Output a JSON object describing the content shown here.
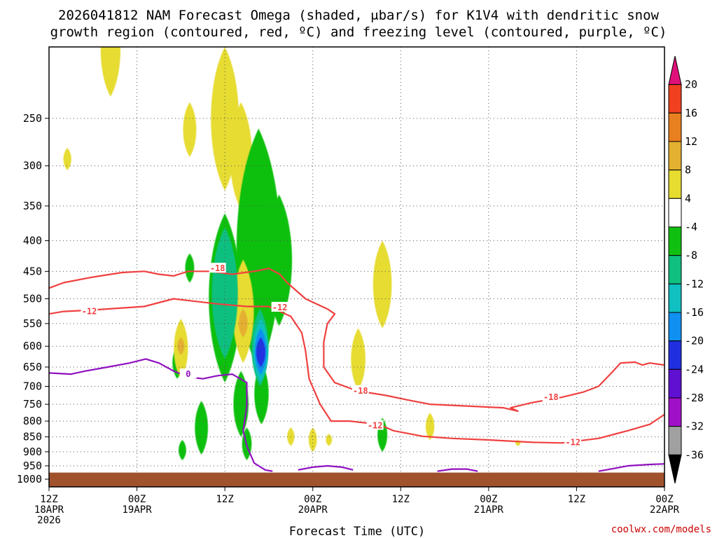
{
  "chart_data": {
    "type": "time-height cross section (filled contours + line contours)",
    "title_line1": "2026041812 NAM Forecast Omega (shaded, μbar/s) for K1V4 with dendritic snow",
    "title_line2": "growth region (contoured, red, ºC) and freezing level (contoured, purple, ºC)",
    "xlabel": "Forecast Time (UTC)",
    "credit": "coolwx.com/models",
    "yaxis": {
      "label": "",
      "ticks": [
        "250",
        "300",
        "350",
        "400",
        "450",
        "500",
        "550",
        "600",
        "650",
        "700",
        "750",
        "800",
        "850",
        "900",
        "950",
        "1000"
      ],
      "ticks_values": [
        250,
        300,
        350,
        400,
        450,
        500,
        550,
        600,
        650,
        700,
        750,
        800,
        850,
        900,
        950,
        1000
      ],
      "range_mb": [
        190,
        1030
      ]
    },
    "xaxis": {
      "range_hours": [
        0,
        84
      ],
      "ticks": [
        {
          "hour": 0,
          "lines": [
            "12Z",
            "18APR",
            "2026"
          ]
        },
        {
          "hour": 12,
          "lines": [
            "00Z",
            "19APR"
          ]
        },
        {
          "hour": 24,
          "lines": [
            "12Z"
          ]
        },
        {
          "hour": 36,
          "lines": [
            "00Z",
            "20APR"
          ]
        },
        {
          "hour": 48,
          "lines": [
            "12Z"
          ]
        },
        {
          "hour": 60,
          "lines": [
            "00Z",
            "21APR"
          ]
        },
        {
          "hour": 72,
          "lines": [
            "12Z"
          ]
        },
        {
          "hour": 84,
          "lines": [
            "00Z",
            "22APR"
          ]
        }
      ]
    },
    "colorbar": {
      "labels": [
        "20",
        "16",
        "12",
        "8",
        "4",
        "-4",
        "-8",
        "-12",
        "-16",
        "-20",
        "-24",
        "-28",
        "-32",
        "-36"
      ],
      "bins": [
        {
          "from": 20,
          "to": 24,
          "color": "#e0107a"
        },
        {
          "from": 16,
          "to": 20,
          "color": "#f04020"
        },
        {
          "from": 12,
          "to": 16,
          "color": "#e88020"
        },
        {
          "from": 8,
          "to": 12,
          "color": "#e4b030"
        },
        {
          "from": 4,
          "to": 8,
          "color": "#e6dc30"
        },
        {
          "from": -4,
          "to": 4,
          "color": "#ffffff"
        },
        {
          "from": -8,
          "to": -4,
          "color": "#10c010"
        },
        {
          "from": -12,
          "to": -8,
          "color": "#10c080"
        },
        {
          "from": -16,
          "to": -12,
          "color": "#10c0c0"
        },
        {
          "from": -20,
          "to": -16,
          "color": "#1090f0"
        },
        {
          "from": -24,
          "to": -20,
          "color": "#2030e0"
        },
        {
          "from": -28,
          "to": -24,
          "color": "#6010d0"
        },
        {
          "from": -32,
          "to": -28,
          "color": "#a010c8"
        },
        {
          "from": -36,
          "to": -32,
          "color": "#a0a0a0"
        },
        {
          "from": -40,
          "to": -36,
          "color": "#000000"
        }
      ]
    },
    "terrain_top_mb": 975,
    "omega_blobs": [
      {
        "value": 4,
        "hour": 8.4,
        "top": 160,
        "bottom": 230
      },
      {
        "value": 4,
        "hour": 2.5,
        "top": 280,
        "bottom": 305
      },
      {
        "value": 4,
        "hour": 19.2,
        "top": 235,
        "bottom": 290
      },
      {
        "value": 4,
        "hour": 24.0,
        "top": 190,
        "bottom": 330
      },
      {
        "value": 4,
        "hour": 26.2,
        "top": 235,
        "bottom": 355
      },
      {
        "value": -4,
        "hour": 28.6,
        "top": 260,
        "bottom": 660
      },
      {
        "value": -4,
        "hour": 31.4,
        "top": 335,
        "bottom": 555
      },
      {
        "value": -4,
        "hour": 24.0,
        "top": 360,
        "bottom": 690
      },
      {
        "value": -4,
        "hour": 17.5,
        "top": 600,
        "bottom": 680
      },
      {
        "value": -4,
        "hour": 20.8,
        "top": 740,
        "bottom": 910
      },
      {
        "value": -4,
        "hour": 18.2,
        "top": 860,
        "bottom": 930
      },
      {
        "value": -4,
        "hour": 26.2,
        "top": 660,
        "bottom": 850
      },
      {
        "value": -4,
        "hour": 29.0,
        "top": 640,
        "bottom": 810
      },
      {
        "value": -4,
        "hour": 27.0,
        "top": 820,
        "bottom": 930
      },
      {
        "value": -4,
        "hour": 19.2,
        "top": 420,
        "bottom": 470
      },
      {
        "value": -4,
        "hour": 45.5,
        "top": 790,
        "bottom": 900
      },
      {
        "value": -8,
        "hour": 28.8,
        "top": 520,
        "bottom": 700
      },
      {
        "value": -8,
        "hour": 24.0,
        "top": 380,
        "bottom": 630
      },
      {
        "value": -12,
        "hour": 28.9,
        "top": 540,
        "bottom": 690
      },
      {
        "value": -16,
        "hour": 28.9,
        "top": 560,
        "bottom": 670
      },
      {
        "value": -20,
        "hour": 28.9,
        "top": 580,
        "bottom": 650
      },
      {
        "value": 4,
        "hour": 26.5,
        "top": 430,
        "bottom": 640
      },
      {
        "value": 8,
        "hour": 26.5,
        "top": 520,
        "bottom": 580
      },
      {
        "value": 4,
        "hour": 18.0,
        "top": 540,
        "bottom": 680
      },
      {
        "value": 8,
        "hour": 18.0,
        "top": 580,
        "bottom": 620
      },
      {
        "value": 4,
        "hour": 45.5,
        "top": 400,
        "bottom": 560
      },
      {
        "value": 4,
        "hour": 42.2,
        "top": 560,
        "bottom": 710
      },
      {
        "value": 4,
        "hour": 33.0,
        "top": 820,
        "bottom": 880
      },
      {
        "value": 4,
        "hour": 36.0,
        "top": 820,
        "bottom": 900
      },
      {
        "value": 4,
        "hour": 52.0,
        "top": 775,
        "bottom": 860
      },
      {
        "value": 4,
        "hour": 64.0,
        "top": 860,
        "bottom": 880
      },
      {
        "value": 4,
        "hour": 38.2,
        "top": 840,
        "bottom": 880
      }
    ],
    "contours_dgz_red": [
      {
        "level": "-18",
        "points": [
          [
            0,
            480
          ],
          [
            2,
            470
          ],
          [
            6,
            460
          ],
          [
            10,
            452
          ],
          [
            13,
            450
          ],
          [
            15,
            455
          ],
          [
            17,
            458
          ],
          [
            19,
            450
          ],
          [
            22,
            450
          ],
          [
            25,
            455
          ],
          [
            28,
            450
          ],
          [
            30,
            445
          ],
          [
            31.5,
            455
          ],
          [
            32.5,
            470
          ],
          [
            35,
            500
          ],
          [
            38,
            520
          ],
          [
            39,
            530
          ],
          [
            38,
            550
          ],
          [
            37.5,
            590
          ],
          [
            37.5,
            650
          ],
          [
            39,
            690
          ],
          [
            42,
            712
          ],
          [
            46,
            725
          ],
          [
            49,
            738
          ],
          [
            52,
            750
          ],
          [
            57,
            755
          ],
          [
            62,
            760
          ],
          [
            64,
            770
          ],
          [
            63,
            760
          ],
          [
            66,
            745
          ],
          [
            70,
            730
          ],
          [
            73,
            715
          ],
          [
            75,
            700
          ],
          [
            77,
            660
          ],
          [
            78,
            640
          ],
          [
            80,
            638
          ],
          [
            81,
            645
          ],
          [
            82,
            640
          ],
          [
            84,
            645
          ]
        ],
        "labels": [
          [
            23,
            445
          ],
          [
            42.5,
            712
          ],
          [
            68.5,
            730
          ]
        ]
      },
      {
        "level": "-12",
        "points": [
          [
            0,
            530
          ],
          [
            2,
            525
          ],
          [
            6,
            522
          ],
          [
            10,
            518
          ],
          [
            13,
            515
          ],
          [
            17,
            500
          ],
          [
            20,
            505
          ],
          [
            23,
            510
          ],
          [
            27,
            515
          ],
          [
            30,
            515
          ],
          [
            33,
            535
          ],
          [
            34.5,
            570
          ],
          [
            35,
            610
          ],
          [
            35.5,
            680
          ],
          [
            37,
            750
          ],
          [
            38.5,
            800
          ],
          [
            41,
            800
          ],
          [
            45,
            810
          ],
          [
            47,
            830
          ],
          [
            51,
            848
          ],
          [
            55,
            855
          ],
          [
            60,
            860
          ],
          [
            66,
            868
          ],
          [
            70,
            870
          ],
          [
            75,
            855
          ],
          [
            79,
            830
          ],
          [
            82,
            810
          ],
          [
            84,
            780
          ]
        ],
        "labels": [
          [
            5.5,
            525
          ],
          [
            31.5,
            517
          ],
          [
            44.5,
            814
          ],
          [
            71.5,
            868
          ]
        ]
      }
    ],
    "contour_freeze_purple": {
      "level": "0",
      "points": [
        [
          0,
          665
        ],
        [
          3,
          668
        ],
        [
          5,
          660
        ],
        [
          8,
          650
        ],
        [
          11,
          640
        ],
        [
          13.2,
          630
        ],
        [
          15,
          640
        ],
        [
          17,
          660
        ],
        [
          19,
          675
        ],
        [
          21,
          680
        ],
        [
          23,
          672
        ],
        [
          25,
          668
        ],
        [
          27,
          690
        ],
        [
          27,
          755
        ],
        [
          26.5,
          830
        ],
        [
          27,
          880
        ],
        [
          28,
          940
        ],
        [
          29.5,
          965
        ],
        [
          30.5,
          970
        ]
      ],
      "segments": [
        [
          [
            34,
            965
          ],
          [
            36,
            955
          ],
          [
            38,
            950
          ],
          [
            40,
            955
          ],
          [
            41.5,
            965
          ]
        ],
        [
          [
            53,
            970
          ],
          [
            55,
            962
          ],
          [
            57,
            962
          ],
          [
            58.5,
            970
          ]
        ],
        [
          [
            75,
            970
          ],
          [
            77,
            960
          ],
          [
            79,
            950
          ],
          [
            82,
            945
          ],
          [
            84,
            943
          ]
        ]
      ],
      "labels": [
        [
          19,
          668
        ]
      ]
    }
  }
}
